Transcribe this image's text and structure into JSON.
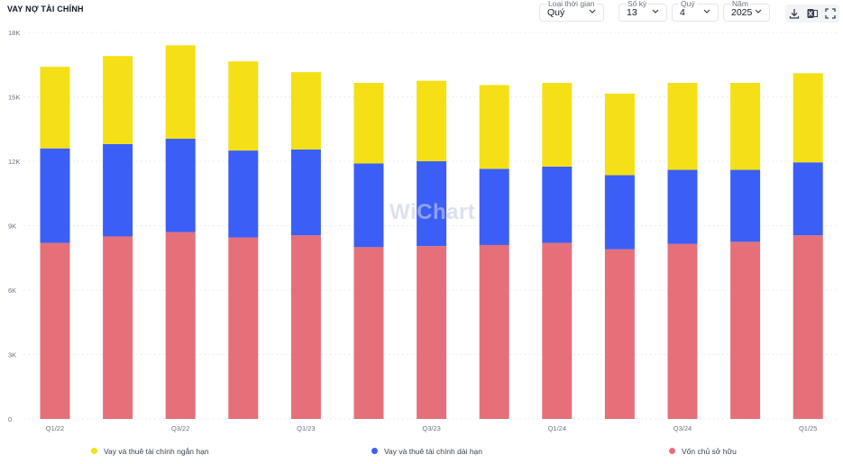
{
  "title": "VAY NỢ TÀI CHÍNH",
  "filters": {
    "period_type": {
      "label": "Loại thời gian",
      "value": "Quý"
    },
    "periods": {
      "label": "Số kỳ",
      "value": "13"
    },
    "quarter": {
      "label": "Quý",
      "value": "4"
    },
    "year": {
      "label": "Năm",
      "value": "2025"
    }
  },
  "toolbar": {
    "download_icon": "download-icon",
    "excel_icon": "excel-icon",
    "fullscreen_icon": "fullscreen-icon"
  },
  "watermark": "WiChart",
  "colors": {
    "short_term": "#f5df16",
    "long_term": "#3b5ef6",
    "equity": "#e5707a",
    "grid": "#e5e7eb",
    "axis_text": "#6b7280"
  },
  "chart_data": {
    "type": "bar",
    "stacked": true,
    "categories": [
      "Q1/22",
      "Q2/22",
      "Q3/22",
      "Q4/22",
      "Q1/23",
      "Q2/23",
      "Q3/23",
      "Q4/23",
      "Q1/24",
      "Q2/24",
      "Q3/24",
      "Q4/24",
      "Q1/25"
    ],
    "x_tick_labels": [
      "Q1/22",
      "",
      "Q3/22",
      "",
      "Q1/23",
      "",
      "Q3/23",
      "",
      "Q1/24",
      "",
      "Q3/24",
      "",
      "Q1/25"
    ],
    "series": [
      {
        "name": "Vốn chủ sở hữu",
        "color_key": "equity",
        "values": [
          8200,
          8500,
          8700,
          8450,
          8550,
          8000,
          8050,
          8100,
          8200,
          7900,
          8150,
          8250,
          8550
        ]
      },
      {
        "name": "Vay và thuê tài chính dài hạn",
        "color_key": "long_term",
        "values": [
          4400,
          4300,
          4350,
          4050,
          4000,
          3900,
          3950,
          3550,
          3550,
          3450,
          3450,
          3350,
          3400
        ]
      },
      {
        "name": "Vay và thuê tài chính ngắn hạn",
        "color_key": "short_term",
        "values": [
          3800,
          4100,
          4350,
          4150,
          3600,
          3750,
          3750,
          3900,
          3900,
          3800,
          4050,
          4050,
          4150
        ]
      }
    ],
    "y_ticks": [
      0,
      3000,
      6000,
      9000,
      12000,
      15000,
      18000
    ],
    "y_tick_labels": [
      "0",
      "3K",
      "6K",
      "9K",
      "12K",
      "15K",
      "18K"
    ],
    "ylim": [
      0,
      18000
    ],
    "grid": true,
    "legend_position": "bottom",
    "legend": [
      {
        "name": "Vay và thuê tài chính ngắn hạn",
        "color_key": "short_term"
      },
      {
        "name": "Vay và thuê tài chính dài hạn",
        "color_key": "long_term"
      },
      {
        "name": "Vốn chủ sở hữu",
        "color_key": "equity"
      }
    ]
  }
}
